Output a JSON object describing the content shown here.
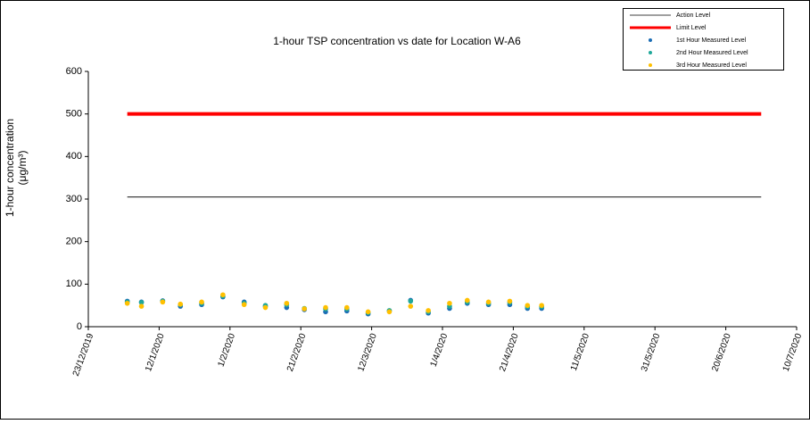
{
  "chart_data": {
    "type": "scatter",
    "title": "1-hour TSP concentration vs date for Location  W-A6",
    "y_label": [
      "1-hour concentration",
      "(μg/m³)"
    ],
    "xlim": [
      "23/12/2019",
      "10/7/2020"
    ],
    "xticks": [
      "23/12/2019",
      "12/1/2020",
      "1/2/2020",
      "21/2/2020",
      "12/3/2020",
      "1/4/2020",
      "21/4/2020",
      "11/5/2020",
      "31/5/2020",
      "20/6/2020",
      "10/7/2020"
    ],
    "ylim": [
      0,
      600
    ],
    "yticks": [
      0,
      100,
      200,
      300,
      400,
      500,
      600
    ],
    "legend": "upper right",
    "series": [
      {
        "name": "Action Level",
        "style": "line",
        "color": "#404040",
        "x": [
          "3/1/2020",
          "30/6/2020"
        ],
        "values": [
          305,
          305
        ]
      },
      {
        "name": "Limit Level",
        "style": "line",
        "color": "#ff0000",
        "x": [
          "3/1/2020",
          "30/6/2020"
        ],
        "values": [
          500,
          500
        ]
      },
      {
        "name": "1st Hour Measured Level",
        "style": "markers",
        "color": "#1b6db5",
        "x": [
          "3/1/2020",
          "7/1/2020",
          "13/1/2020",
          "18/1/2020",
          "24/1/2020",
          "30/1/2020",
          "5/2/2020",
          "11/2/2020",
          "17/2/2020",
          "22/2/2020",
          "28/2/2020",
          "5/3/2020",
          "11/3/2020",
          "17/3/2020",
          "23/3/2020",
          "28/3/2020",
          "3/4/2020",
          "8/4/2020",
          "14/4/2020",
          "20/4/2020",
          "25/4/2020",
          "29/4/2020"
        ],
        "values": [
          60,
          58,
          61,
          48,
          52,
          70,
          58,
          48,
          45,
          40,
          35,
          37,
          30,
          37,
          62,
          32,
          43,
          55,
          52,
          52,
          43,
          43
        ]
      },
      {
        "name": "2nd Hour Measured Level",
        "style": "markers",
        "color": "#1fa89a",
        "x": [
          "3/1/2020",
          "7/1/2020",
          "13/1/2020",
          "18/1/2020",
          "24/1/2020",
          "30/1/2020",
          "5/2/2020",
          "11/2/2020",
          "17/2/2020",
          "22/2/2020",
          "28/2/2020",
          "5/3/2020",
          "11/3/2020",
          "17/3/2020",
          "23/3/2020",
          "28/3/2020",
          "3/4/2020",
          "8/4/2020",
          "14/4/2020",
          "20/4/2020",
          "25/4/2020",
          "29/4/2020"
        ],
        "values": [
          58,
          57,
          60,
          52,
          55,
          72,
          55,
          50,
          52,
          43,
          42,
          42,
          33,
          38,
          60,
          35,
          48,
          58,
          55,
          57,
          47,
          47
        ]
      },
      {
        "name": "3rd Hour Measured Level",
        "style": "markers",
        "color": "#ffc000",
        "x": [
          "3/1/2020",
          "7/1/2020",
          "13/1/2020",
          "18/1/2020",
          "24/1/2020",
          "30/1/2020",
          "5/2/2020",
          "11/2/2020",
          "17/2/2020",
          "22/2/2020",
          "28/2/2020",
          "5/3/2020",
          "11/3/2020",
          "17/3/2020",
          "23/3/2020",
          "28/3/2020",
          "3/4/2020",
          "8/4/2020",
          "14/4/2020",
          "20/4/2020",
          "25/4/2020",
          "29/4/2020"
        ],
        "values": [
          55,
          48,
          58,
          53,
          58,
          75,
          52,
          45,
          55,
          42,
          45,
          45,
          35,
          35,
          48,
          38,
          55,
          62,
          58,
          60,
          50,
          50
        ]
      }
    ]
  }
}
